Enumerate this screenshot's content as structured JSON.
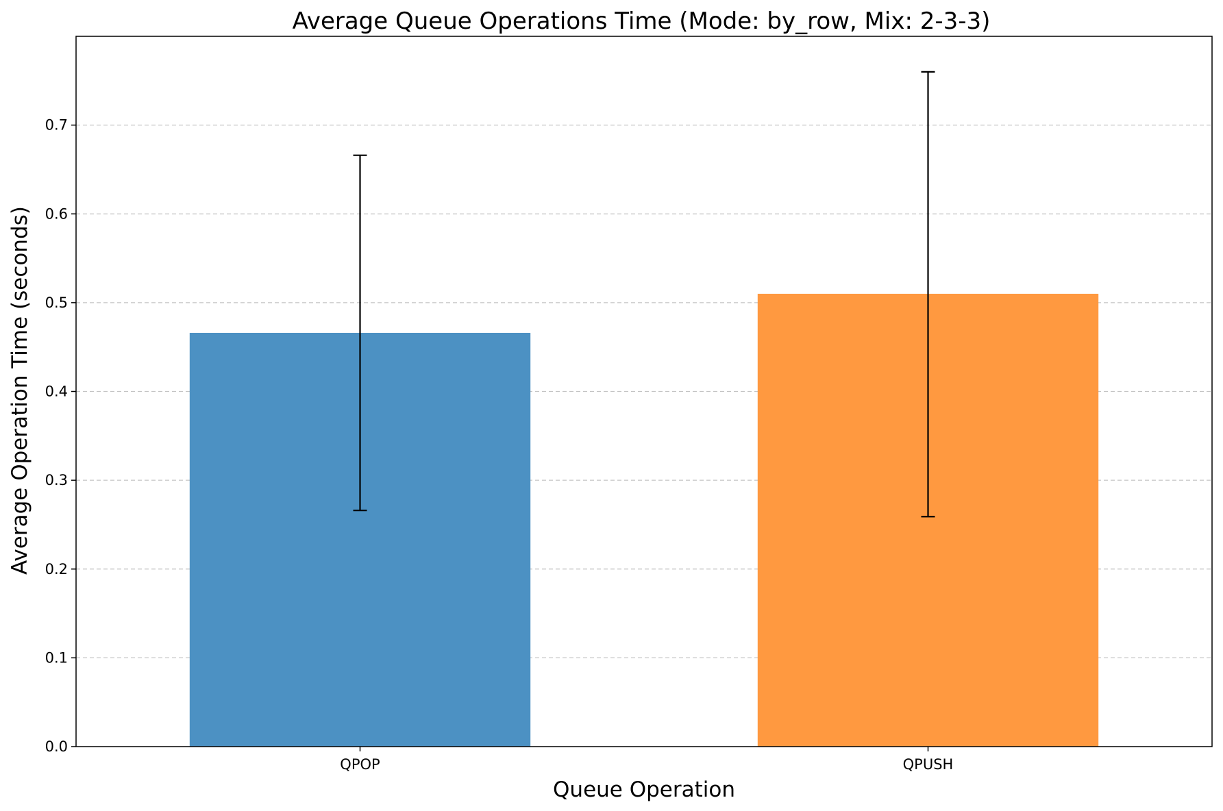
{
  "chart_data": {
    "type": "bar",
    "title": "Average Queue Operations Time (Mode: by_row, Mix: 2-3-3)",
    "xlabel": "Queue Operation",
    "ylabel": "Average Operation Time (seconds)",
    "categories": [
      "QPOP",
      "QPUSH"
    ],
    "values": [
      0.466,
      0.51
    ],
    "error_low": [
      0.266,
      0.259
    ],
    "error_high": [
      0.666,
      0.76
    ],
    "colors": [
      "#4c91c3",
      "#ff9940"
    ],
    "ylim": [
      0,
      0.8
    ],
    "yticks": [
      "0.0",
      "0.1",
      "0.2",
      "0.3",
      "0.4",
      "0.5",
      "0.6",
      "0.7"
    ],
    "grid": "y-dashed",
    "legend": "none"
  }
}
